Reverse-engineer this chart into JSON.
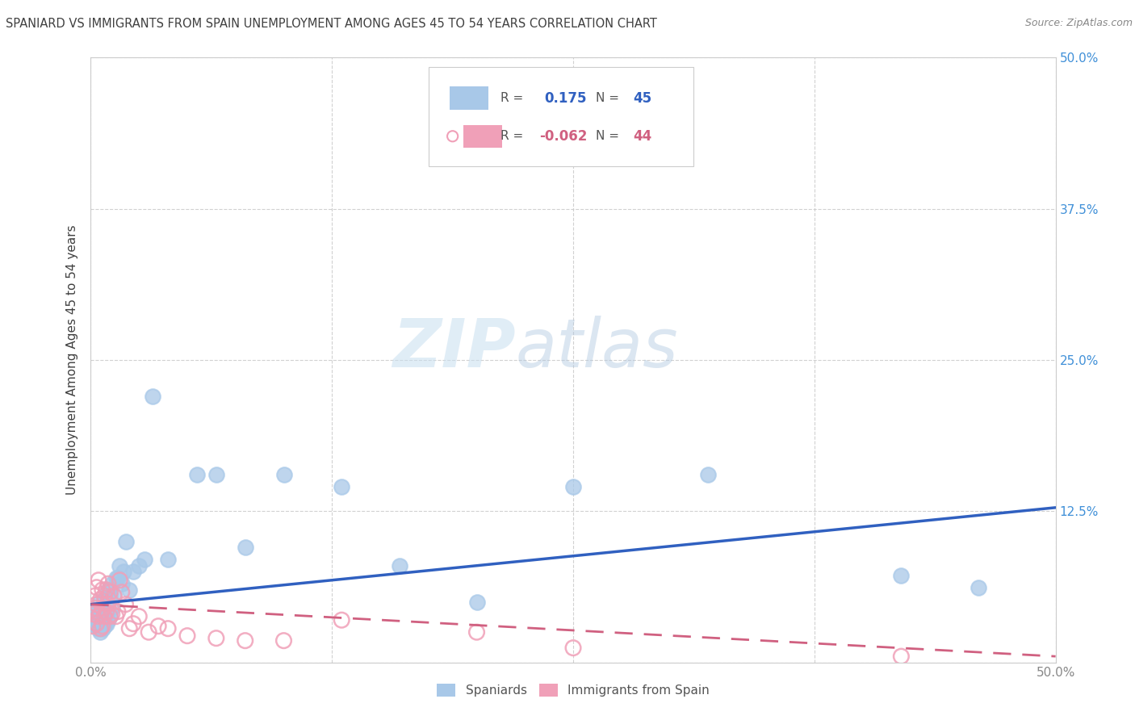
{
  "title": "SPANIARD VS IMMIGRANTS FROM SPAIN UNEMPLOYMENT AMONG AGES 45 TO 54 YEARS CORRELATION CHART",
  "source": "Source: ZipAtlas.com",
  "ylabel": "Unemployment Among Ages 45 to 54 years",
  "xlim": [
    0.0,
    0.5
  ],
  "ylim": [
    0.0,
    0.5
  ],
  "xticks": [
    0.0,
    0.125,
    0.25,
    0.375,
    0.5
  ],
  "xticklabels": [
    "0.0%",
    "",
    "",
    "",
    "50.0%"
  ],
  "yticks": [
    0.0,
    0.125,
    0.25,
    0.375,
    0.5
  ],
  "yticklabels": [
    "",
    "12.5%",
    "25.0%",
    "37.5%",
    "50.0%"
  ],
  "spaniards_R": 0.175,
  "spaniards_N": 45,
  "immigrants_R": -0.062,
  "immigrants_N": 44,
  "spaniard_color": "#a8c8e8",
  "immigrant_color": "#f0a0b8",
  "trend_spaniard_color": "#3060c0",
  "trend_immigrant_color": "#d06080",
  "watermark_zip": "ZIP",
  "watermark_atlas": "atlas",
  "background_color": "#ffffff",
  "grid_color": "#cccccc",
  "title_color": "#404040",
  "axis_label_color": "#404040",
  "right_tick_color": "#4090d8",
  "spaniards_x": [
    0.001,
    0.002,
    0.003,
    0.003,
    0.004,
    0.004,
    0.005,
    0.005,
    0.006,
    0.006,
    0.006,
    0.007,
    0.007,
    0.008,
    0.008,
    0.009,
    0.009,
    0.01,
    0.01,
    0.011,
    0.011,
    0.012,
    0.013,
    0.014,
    0.015,
    0.016,
    0.017,
    0.018,
    0.02,
    0.022,
    0.025,
    0.028,
    0.032,
    0.04,
    0.055,
    0.065,
    0.08,
    0.1,
    0.13,
    0.16,
    0.2,
    0.25,
    0.32,
    0.42,
    0.46
  ],
  "spaniards_y": [
    0.04,
    0.038,
    0.035,
    0.03,
    0.042,
    0.028,
    0.05,
    0.025,
    0.045,
    0.038,
    0.028,
    0.052,
    0.03,
    0.048,
    0.032,
    0.06,
    0.035,
    0.055,
    0.04,
    0.065,
    0.045,
    0.055,
    0.07,
    0.07,
    0.08,
    0.065,
    0.075,
    0.1,
    0.06,
    0.075,
    0.08,
    0.085,
    0.22,
    0.085,
    0.155,
    0.155,
    0.095,
    0.155,
    0.145,
    0.08,
    0.05,
    0.145,
    0.155,
    0.072,
    0.062
  ],
  "immigrants_x": [
    0.001,
    0.001,
    0.002,
    0.002,
    0.003,
    0.003,
    0.003,
    0.004,
    0.004,
    0.005,
    0.005,
    0.005,
    0.006,
    0.006,
    0.006,
    0.007,
    0.007,
    0.008,
    0.008,
    0.009,
    0.009,
    0.01,
    0.01,
    0.011,
    0.012,
    0.013,
    0.014,
    0.015,
    0.016,
    0.018,
    0.02,
    0.022,
    0.025,
    0.03,
    0.035,
    0.04,
    0.05,
    0.065,
    0.08,
    0.1,
    0.13,
    0.2,
    0.25,
    0.42
  ],
  "immigrants_y": [
    0.04,
    0.03,
    0.055,
    0.045,
    0.062,
    0.048,
    0.032,
    0.068,
    0.038,
    0.052,
    0.04,
    0.028,
    0.06,
    0.045,
    0.03,
    0.055,
    0.038,
    0.06,
    0.042,
    0.065,
    0.048,
    0.058,
    0.038,
    0.04,
    0.055,
    0.038,
    0.042,
    0.068,
    0.058,
    0.048,
    0.028,
    0.032,
    0.038,
    0.025,
    0.03,
    0.028,
    0.022,
    0.02,
    0.018,
    0.018,
    0.035,
    0.025,
    0.012,
    0.005
  ],
  "trend_spaniard_x0": 0.0,
  "trend_spaniard_y0": 0.048,
  "trend_spaniard_x1": 0.5,
  "trend_spaniard_y1": 0.128,
  "trend_immigrant_x0": 0.0,
  "trend_immigrant_y0": 0.048,
  "trend_immigrant_x1": 0.5,
  "trend_immigrant_y1": 0.005
}
